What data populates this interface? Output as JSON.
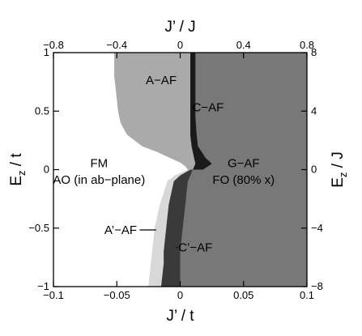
{
  "chart_data": {
    "type": "area",
    "title": "",
    "axes": {
      "bottom": {
        "label": "J’ / t",
        "ticks": [
          "−0.1",
          "−0.05",
          "0",
          "0.05",
          "0.1"
        ],
        "range": [
          -0.1,
          0.1
        ]
      },
      "top": {
        "label": "J’ / J",
        "ticks": [
          "−0.8",
          "−0.4",
          "0",
          "0.4",
          "0.8"
        ],
        "range": [
          -0.8,
          0.8
        ]
      },
      "left": {
        "label_main": "E",
        "label_sub": "z",
        "label_tail": " / t",
        "ticks": [
          "−1",
          "−0.5",
          "0",
          "0.5",
          "1"
        ],
        "range": [
          -1,
          1
        ]
      },
      "right": {
        "label_main": "E",
        "label_sub": "z",
        "label_tail": " / J",
        "ticks": [
          "−8",
          "−4",
          "0",
          "4",
          "8"
        ],
        "range": [
          -8,
          8
        ]
      }
    },
    "regions": [
      {
        "name": "FM",
        "color": "#ffffff"
      },
      {
        "name": "A-AF",
        "color": "#aaaaaa"
      },
      {
        "name": "A'-AF",
        "color": "#d8d8d8"
      },
      {
        "name": "G-AF",
        "color": "#787878"
      },
      {
        "name": "C-AF",
        "color": "#1a1a1a"
      },
      {
        "name": "C'-AF",
        "color": "#3a3a3a"
      }
    ],
    "boundaries": {
      "fm_left_edge_xy": [
        [
          -0.052,
          1.0
        ],
        [
          -0.052,
          0.9
        ],
        [
          -0.052,
          0.8
        ],
        [
          -0.051,
          0.7
        ],
        [
          -0.05,
          0.6
        ],
        [
          -0.049,
          0.5
        ],
        [
          -0.047,
          0.4
        ],
        [
          -0.042,
          0.3
        ],
        [
          -0.03,
          0.2
        ],
        [
          -0.018,
          0.15
        ],
        [
          -0.008,
          0.1
        ],
        [
          0.0,
          0.06
        ],
        [
          0.004,
          0.03
        ],
        [
          0.006,
          0.0
        ]
      ],
      "aprime_left_edge_xy": [
        [
          0.006,
          0.0
        ],
        [
          -0.004,
          -0.05
        ],
        [
          -0.01,
          -0.1
        ],
        [
          -0.013,
          -0.2
        ],
        [
          -0.016,
          -0.3
        ],
        [
          -0.018,
          -0.4
        ],
        [
          -0.02,
          -0.5
        ],
        [
          -0.021,
          -0.6
        ],
        [
          -0.022,
          -0.7
        ],
        [
          -0.023,
          -0.8
        ],
        [
          -0.024,
          -0.9
        ],
        [
          -0.025,
          -1.0
        ]
      ],
      "aprime_right_edge_xy": [
        [
          0.008,
          0.0
        ],
        [
          0.0,
          -0.05
        ],
        [
          -0.005,
          -0.1
        ],
        [
          -0.007,
          -0.2
        ],
        [
          -0.009,
          -0.3
        ],
        [
          -0.01,
          -0.4
        ],
        [
          -0.011,
          -0.5
        ],
        [
          -0.012,
          -0.6
        ],
        [
          -0.013,
          -0.7
        ],
        [
          -0.013,
          -0.8
        ],
        [
          -0.014,
          -0.9
        ],
        [
          -0.015,
          -1.0
        ]
      ],
      "cprime_left_edge_xy": [
        [
          0.008,
          0.0
        ],
        [
          0.0,
          -0.05
        ],
        [
          -0.005,
          -0.1
        ],
        [
          -0.007,
          -0.2
        ],
        [
          -0.009,
          -0.3
        ],
        [
          -0.01,
          -0.4
        ],
        [
          -0.011,
          -0.5
        ],
        [
          -0.012,
          -0.6
        ],
        [
          -0.013,
          -0.7
        ],
        [
          -0.013,
          -0.8
        ],
        [
          -0.014,
          -0.9
        ],
        [
          -0.015,
          -1.0
        ]
      ],
      "cprime_right_edge_xy": [
        [
          0.01,
          0.0
        ],
        [
          0.008,
          -0.05
        ],
        [
          0.006,
          -0.1
        ],
        [
          0.005,
          -0.2
        ],
        [
          0.004,
          -0.3
        ],
        [
          0.003,
          -0.4
        ],
        [
          0.002,
          -0.5
        ],
        [
          0.001,
          -0.6
        ],
        [
          0.0,
          -0.7
        ],
        [
          0.0,
          -0.8
        ],
        [
          0.0,
          -0.9
        ],
        [
          0.0,
          -1.0
        ]
      ],
      "caf_left_edge_xy": [
        [
          0.008,
          1.0
        ],
        [
          0.008,
          0.8
        ],
        [
          0.008,
          0.6
        ],
        [
          0.008,
          0.45
        ],
        [
          0.008,
          0.3
        ],
        [
          0.009,
          0.2
        ],
        [
          0.01,
          0.15
        ],
        [
          0.011,
          0.1
        ],
        [
          0.012,
          0.05
        ],
        [
          0.01,
          0.0
        ]
      ],
      "caf_right_edge_xy": [
        [
          0.012,
          1.0
        ],
        [
          0.012,
          0.8
        ],
        [
          0.012,
          0.6
        ],
        [
          0.012,
          0.45
        ],
        [
          0.013,
          0.3
        ],
        [
          0.014,
          0.2
        ],
        [
          0.017,
          0.15
        ],
        [
          0.02,
          0.1
        ],
        [
          0.025,
          0.05
        ],
        [
          0.018,
          0.0
        ]
      ]
    },
    "annotations": [
      {
        "name": "fm-label",
        "text": "FM",
        "x": -0.064,
        "y": 0.02
      },
      {
        "name": "ao-label",
        "text": "AO (in ab−plane)",
        "x": -0.064,
        "y": -0.12
      },
      {
        "name": "aaf-label",
        "text": "A−AF",
        "x": -0.015,
        "y": 0.73
      },
      {
        "name": "caf-label",
        "text": "C−AF",
        "x": 0.022,
        "y": 0.5,
        "arrow_to": [
          0.01,
          0.5
        ]
      },
      {
        "name": "gaf-label",
        "text": "G−AF",
        "x": 0.05,
        "y": 0.02
      },
      {
        "name": "fo-label",
        "text": "FO (80% x)",
        "x": 0.05,
        "y": -0.12
      },
      {
        "name": "apaf-label",
        "text": "A’−AF",
        "x": -0.047,
        "y": -0.55,
        "arrow_to": [
          -0.019,
          -0.55
        ]
      },
      {
        "name": "cpaf-label",
        "text": "C’−AF",
        "x": 0.012,
        "y": -0.7,
        "arrow_to": [
          -0.002,
          -0.7
        ]
      }
    ]
  }
}
